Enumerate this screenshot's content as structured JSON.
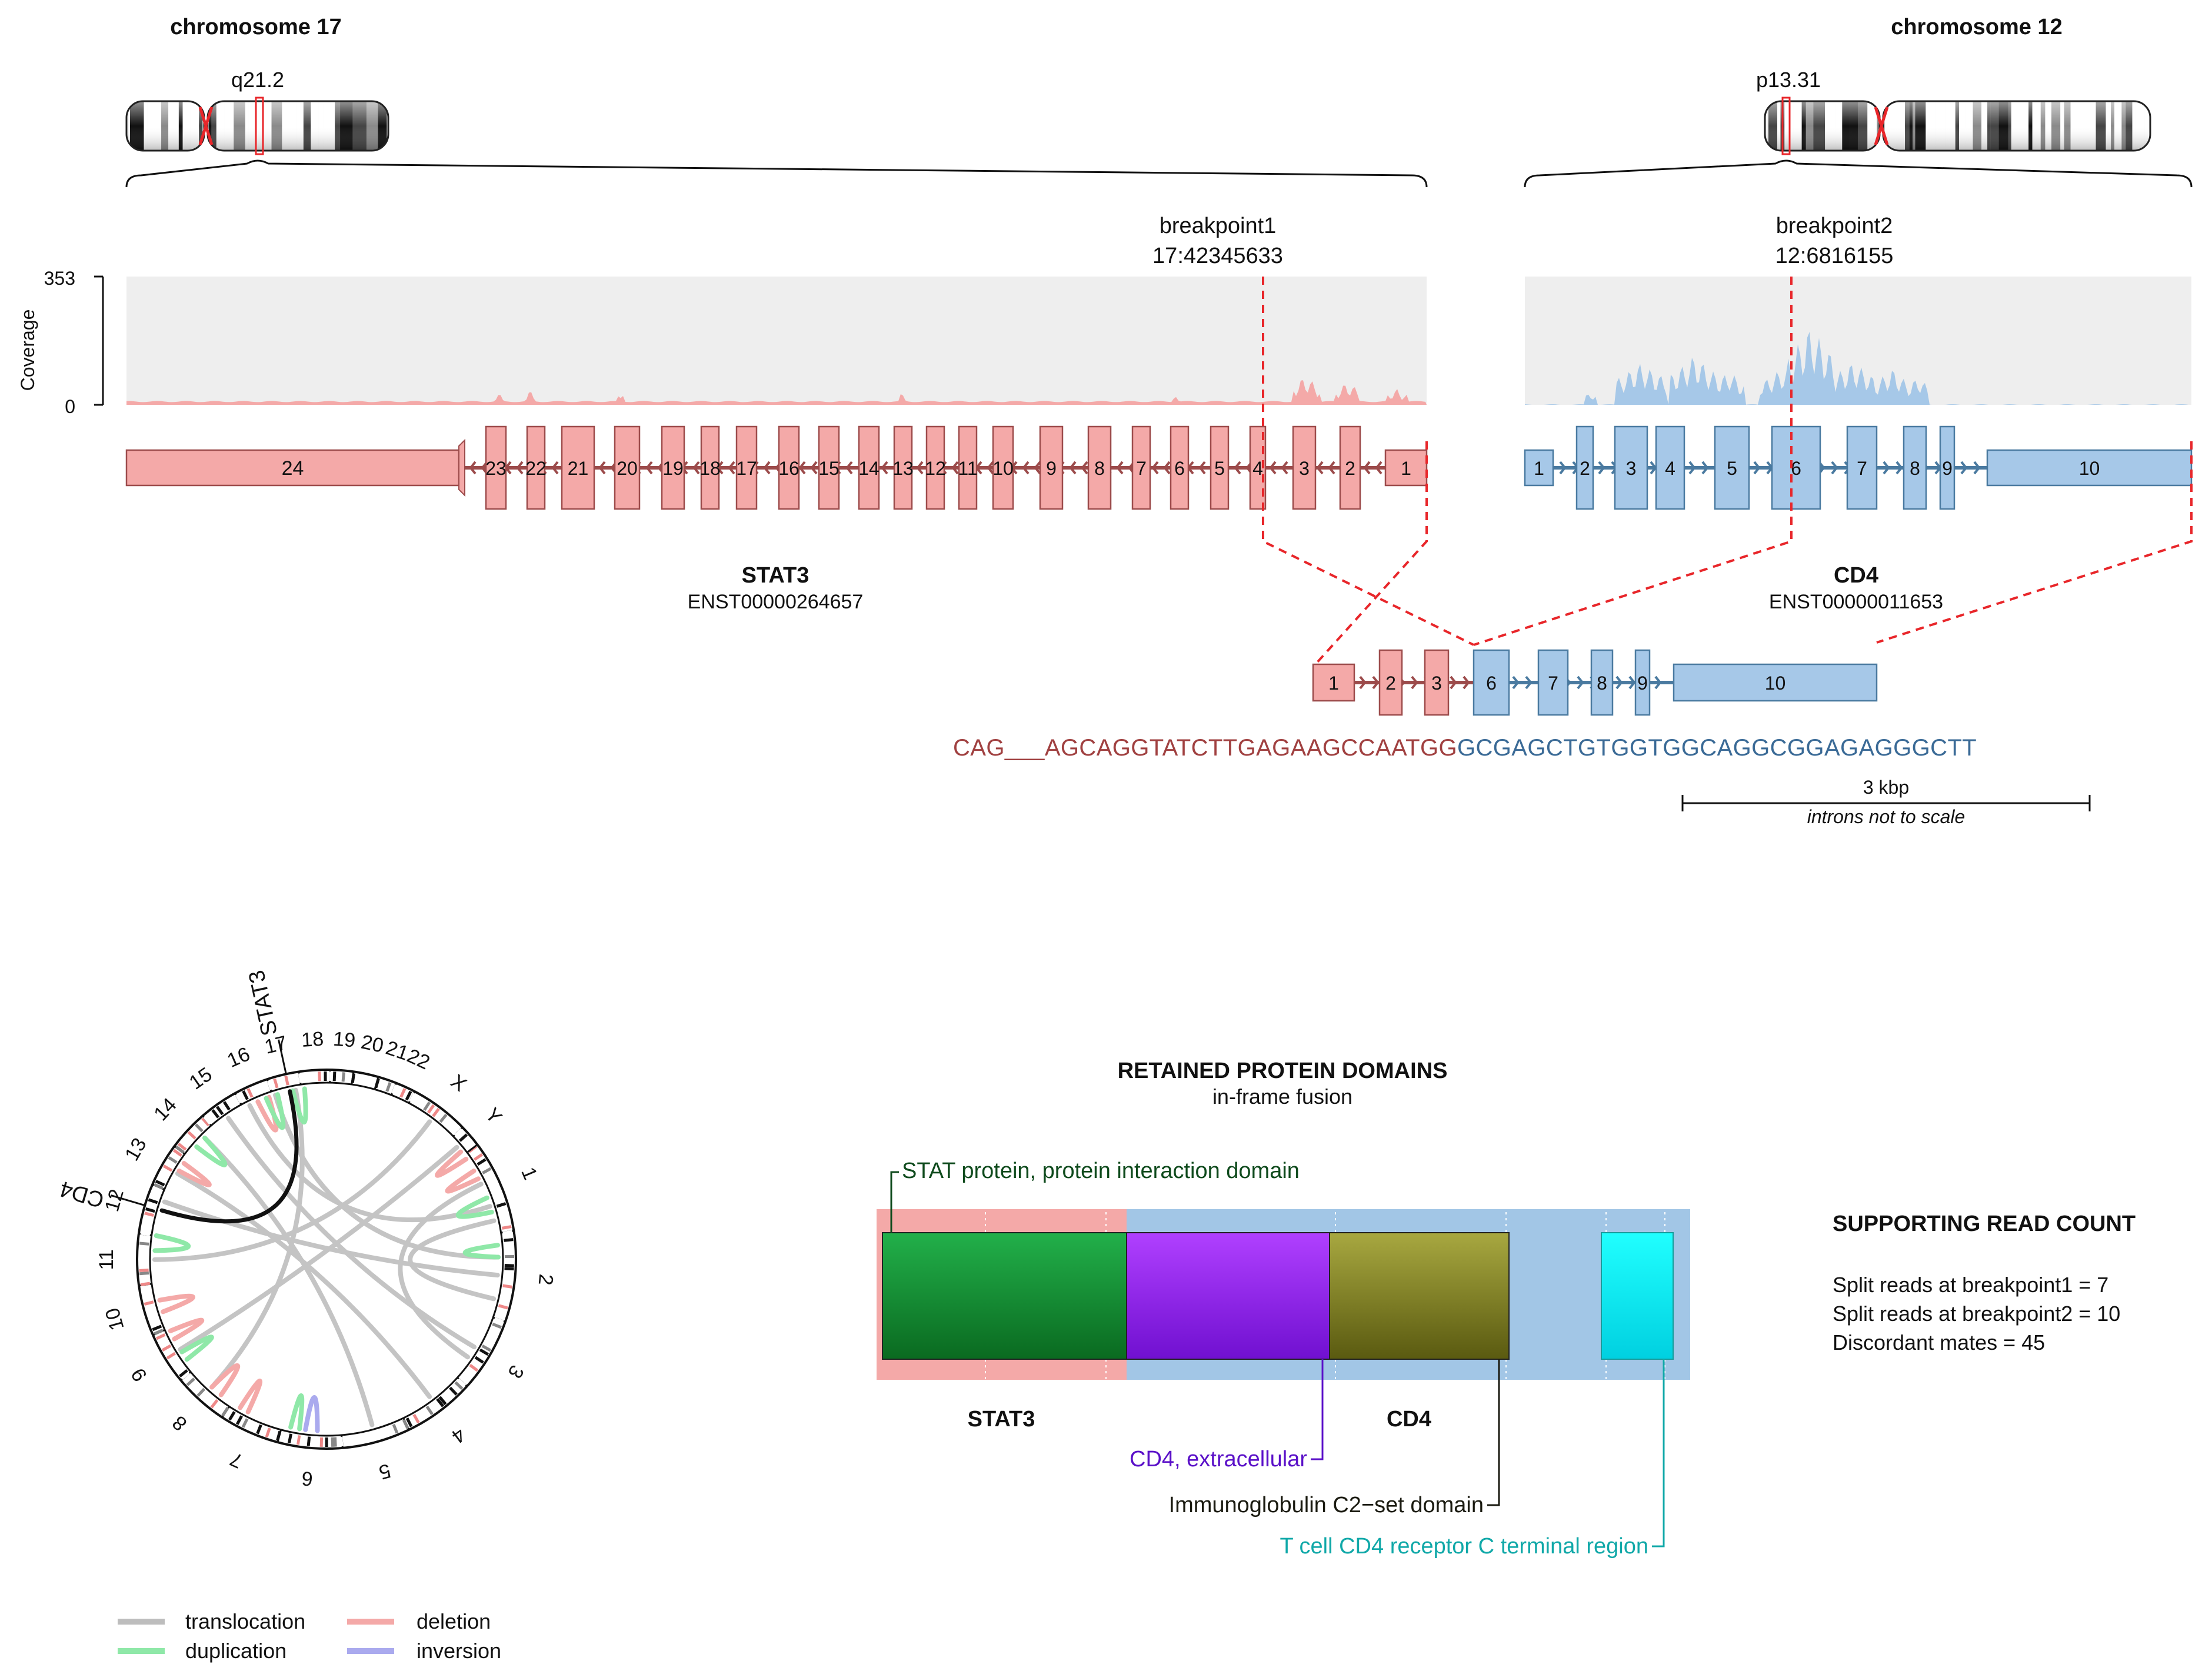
{
  "chromosomes": {
    "left": {
      "title": "chromosome 17",
      "band": "q21.2"
    },
    "right": {
      "title": "chromosome 12",
      "band": "p13.31"
    }
  },
  "breakpoints": {
    "bp1": {
      "label": "breakpoint1",
      "position": "17:42345633"
    },
    "bp2": {
      "label": "breakpoint2",
      "position": "12:6816155"
    }
  },
  "coverage": {
    "axis_label": "Coverage",
    "max_label": "353",
    "min_label": "0",
    "max": 353
  },
  "genes": {
    "gene5": {
      "name": "STAT3",
      "transcript": "ENST00000264657",
      "color": "#f4a9a8",
      "border": "#9c4b4b",
      "exons": [
        "24",
        "23",
        "22",
        "21",
        "20",
        "19",
        "18",
        "17",
        "16",
        "15",
        "14",
        "13",
        "12",
        "11",
        "10",
        "9",
        "8",
        "7",
        "6",
        "5",
        "4",
        "3",
        "2",
        "1"
      ]
    },
    "gene3": {
      "name": "CD4",
      "transcript": "ENST00000011653",
      "color": "#a6c8e8",
      "border": "#4a7aa0",
      "exons": [
        "1",
        "2",
        "3",
        "4",
        "5",
        "6",
        "7",
        "8",
        "9",
        "10"
      ]
    }
  },
  "fusion": {
    "exons": [
      "1",
      "2",
      "3",
      "6",
      "7",
      "8",
      "9",
      "10"
    ],
    "seq_5prime": "CAG___AGCAGGTATCTTGAGAAGCCAATGG",
    "seq_3prime": "GCGAGCTGTGGTGGCAGGCGGAGAGGGCTT",
    "seq_5_color": "#a04040",
    "seq_3_color": "#3a6a96",
    "scale_label": "3 kbp",
    "scale_note": "introns not to scale"
  },
  "circos": {
    "chromosomes": [
      "1",
      "2",
      "3",
      "4",
      "5",
      "6",
      "7",
      "8",
      "9",
      "10",
      "11",
      "12",
      "13",
      "14",
      "15",
      "16",
      "17",
      "18",
      "19",
      "20",
      "21",
      "22",
      "X",
      "Y"
    ],
    "gene_labels": [
      "CD4",
      "STAT3"
    ],
    "legend": [
      {
        "label": "translocation",
        "color": "#bdbdbd"
      },
      {
        "label": "deletion",
        "color": "#f4a9a8"
      },
      {
        "label": "duplication",
        "color": "#8fe8a8"
      },
      {
        "label": "inversion",
        "color": "#aaaaee"
      }
    ]
  },
  "domains": {
    "title": "RETAINED PROTEIN DOMAINS",
    "subtitle": "in-frame fusion",
    "gene5_label": "STAT3",
    "gene3_label": "CD4",
    "items": [
      {
        "label": "STAT protein, protein interaction domain",
        "color": "#1e8f3a",
        "text_color": "#0e4a1c"
      },
      {
        "label": "CD4, extracellular",
        "color": "#a020f0",
        "text_color": "#5a10c8"
      },
      {
        "label": "Immunoglobulin C2−set domain",
        "color": "#8a8a20",
        "text_color": "#1a1a10"
      },
      {
        "label": "T cell CD4 receptor C terminal region",
        "color": "#00f0f0",
        "text_color": "#10a8a8"
      }
    ]
  },
  "reads": {
    "title": "SUPPORTING READ COUNT",
    "lines": [
      "Split reads at breakpoint1 = 7",
      "Split reads at breakpoint2 = 10",
      "Discordant mates = 45"
    ]
  }
}
